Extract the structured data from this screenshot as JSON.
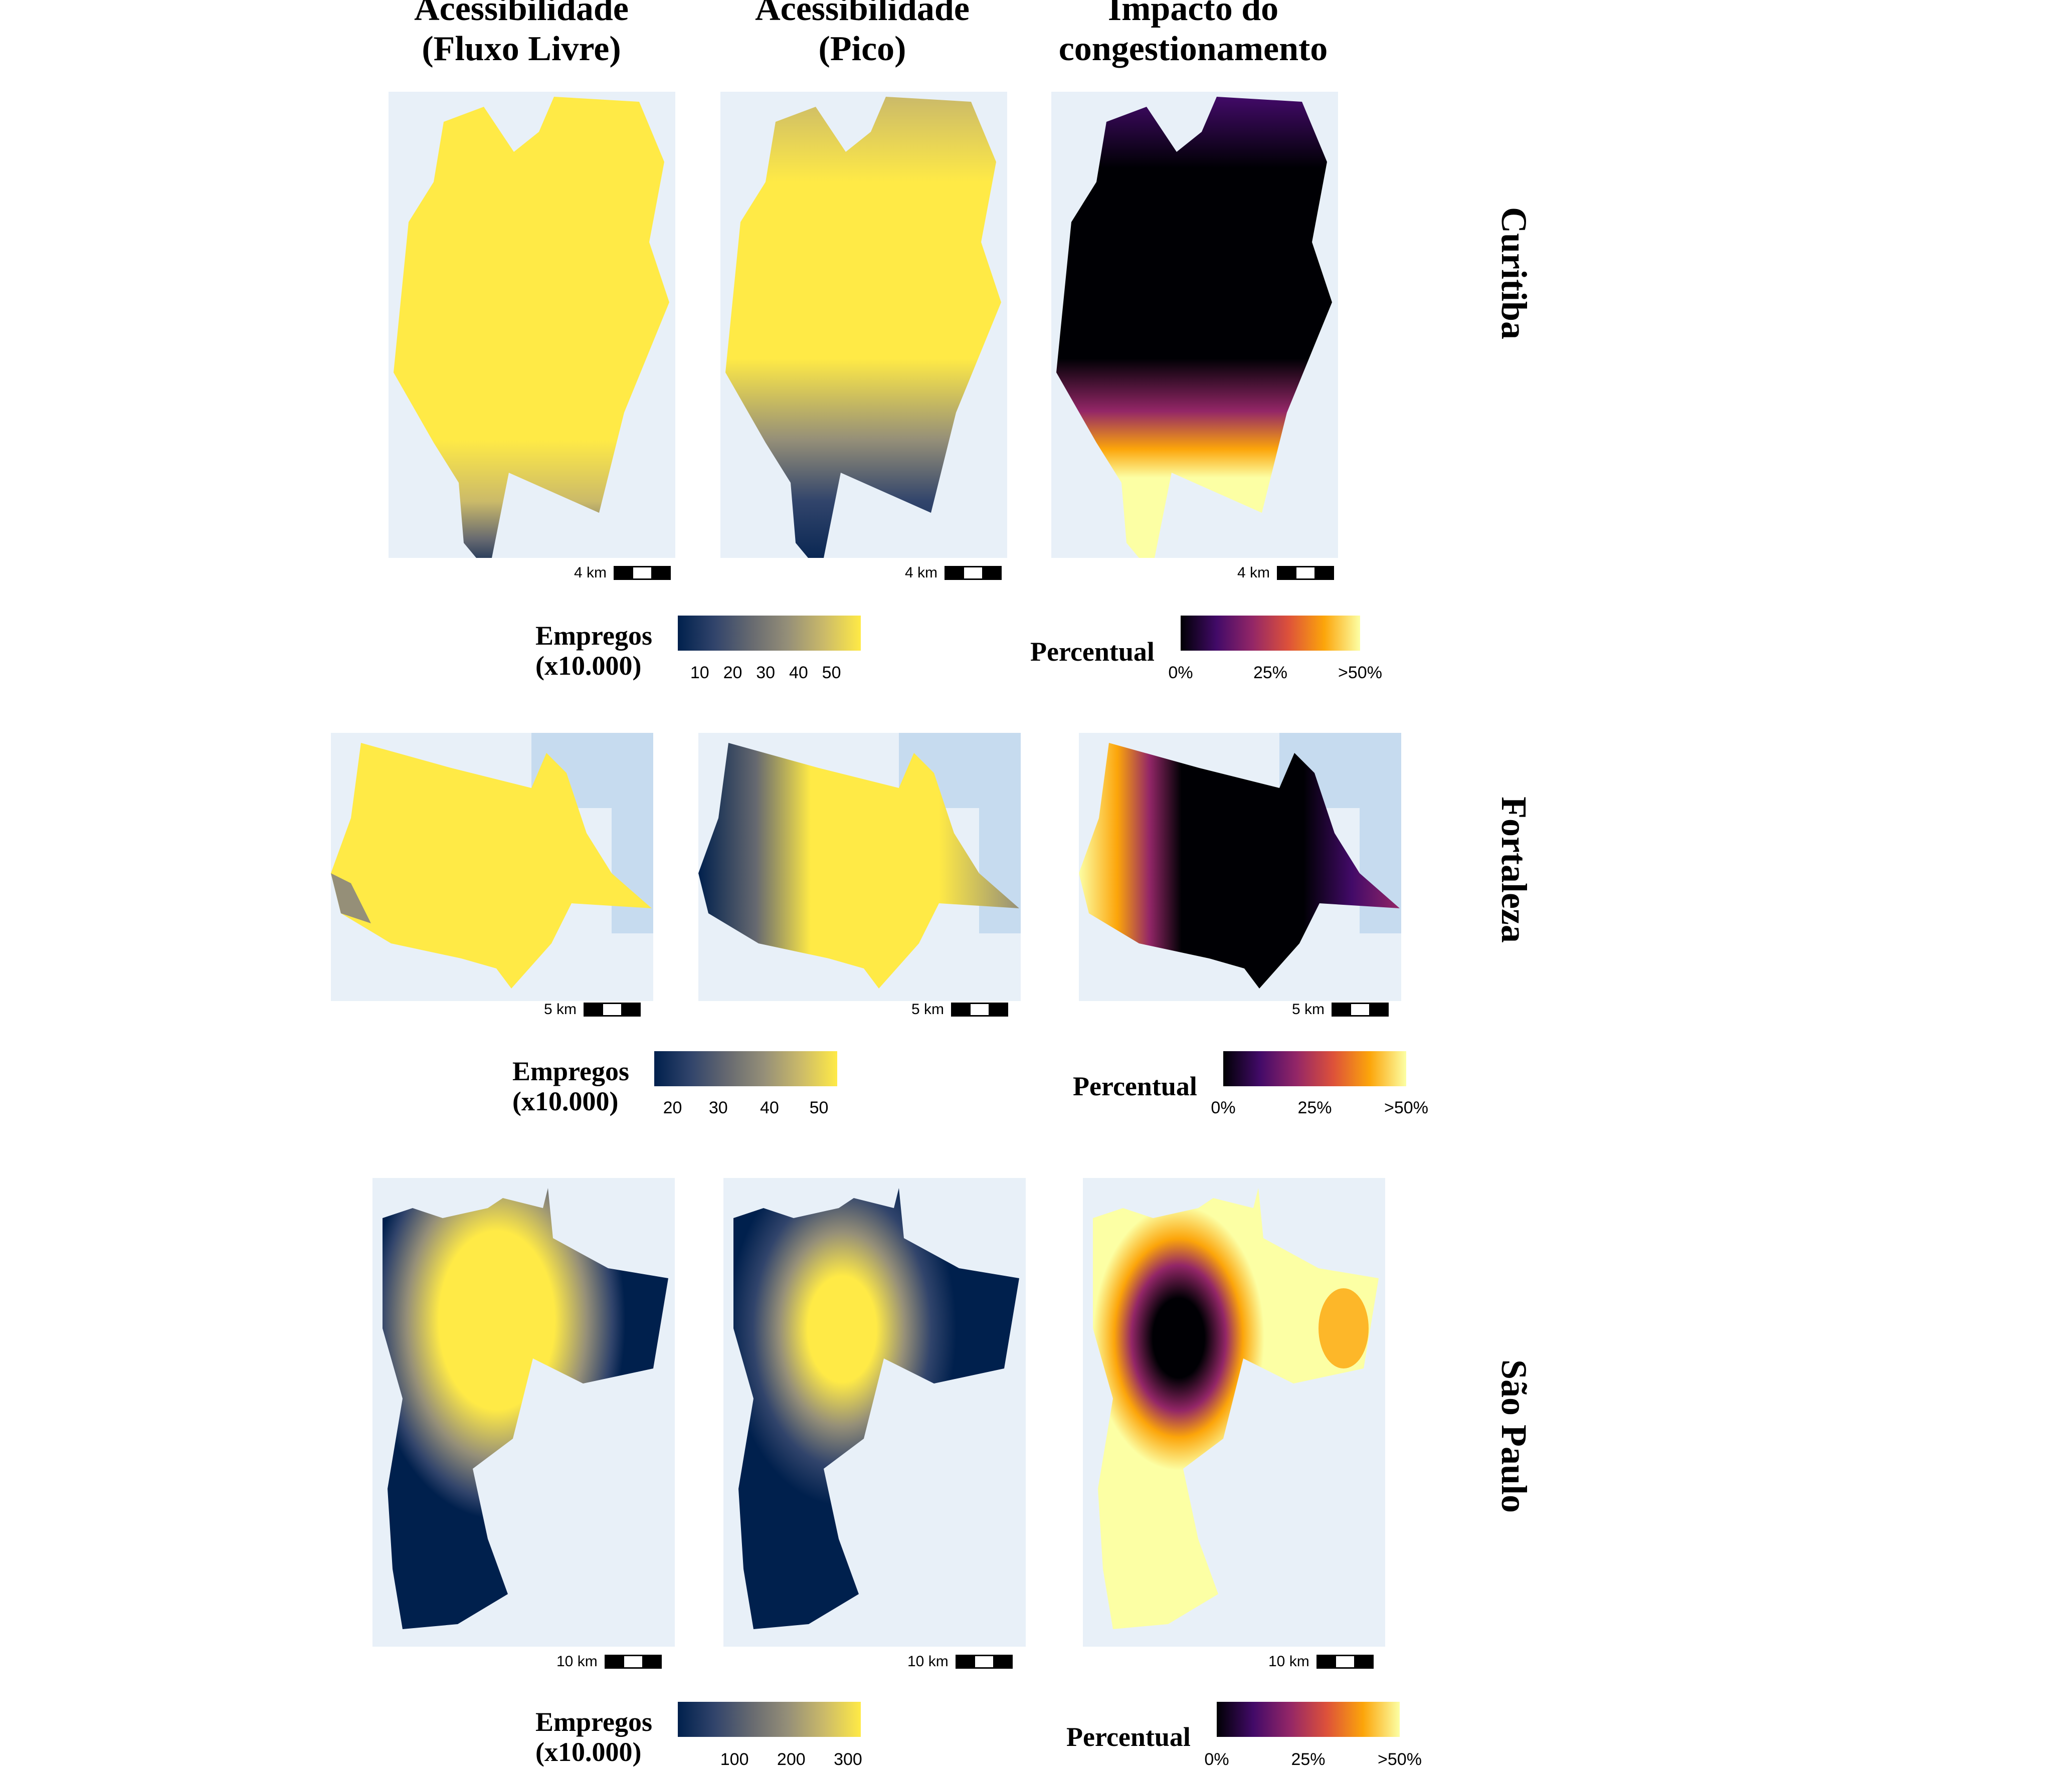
{
  "columns": [
    {
      "title": "Acessibilidade\n(Fluxo Livre)"
    },
    {
      "title": "Acessibilidade\n(Pico)"
    },
    {
      "title": "Impacto do\ncongestionamento"
    }
  ],
  "cities": [
    {
      "name": "Curitiba",
      "scale_label": "4 km",
      "access_legend": {
        "title": "Empregos\n(x10.000)",
        "ticks": [
          "10",
          "20",
          "30",
          "40",
          "50"
        ]
      },
      "impact_legend": {
        "title": "Percentual",
        "ticks": [
          "0%",
          "25%",
          ">50%"
        ]
      }
    },
    {
      "name": "Fortaleza",
      "scale_label": "5 km",
      "access_legend": {
        "title": "Empregos\n(x10.000)",
        "ticks": [
          "20",
          "30",
          "40",
          "50"
        ]
      },
      "impact_legend": {
        "title": "Percentual",
        "ticks": [
          "0%",
          "25%",
          ">50%"
        ]
      }
    },
    {
      "name": "São Paulo",
      "scale_label": "10 km",
      "access_legend": {
        "title": "Empregos\n(x10.000)",
        "ticks": [
          "100",
          "200",
          "300"
        ]
      },
      "impact_legend": {
        "title": "Percentual",
        "ticks": [
          "0%",
          "25%",
          ">50%"
        ]
      }
    }
  ],
  "colors": {
    "access_scale": [
      "#00204d",
      "#31446b",
      "#666970",
      "#958f78",
      "#cbba69",
      "#ffea46"
    ],
    "impact_scale": [
      "#000004",
      "#420a68",
      "#932667",
      "#dd513a",
      "#fca50a",
      "#fcffa4"
    ],
    "basemap": "#e8f0f8",
    "water": "#c6dbef"
  }
}
